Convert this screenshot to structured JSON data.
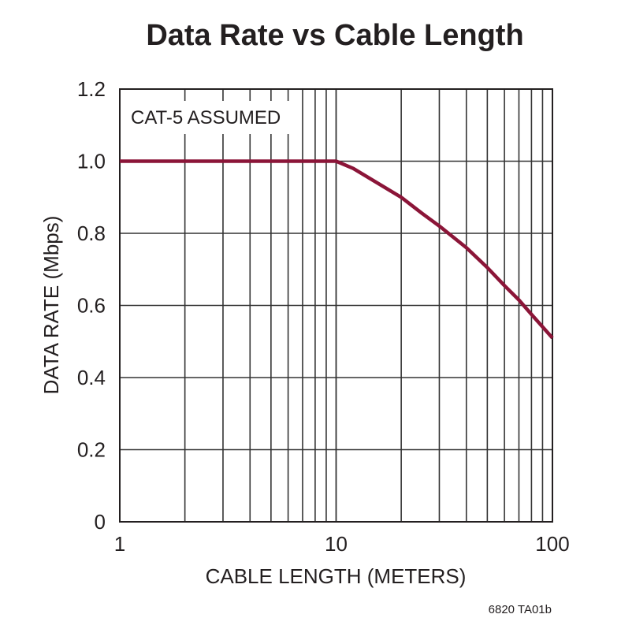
{
  "chart_data": {
    "type": "line",
    "title": "Data Rate vs Cable Length",
    "xlabel": "CABLE LENGTH (METERS)",
    "ylabel": "DATA RATE (Mbps)",
    "x_scale": "log",
    "xlim": [
      1,
      100
    ],
    "ylim": [
      0,
      1.2
    ],
    "x_tick_labels": [
      "1",
      "10",
      "100"
    ],
    "y_tick_labels": [
      "0",
      "0.2",
      "0.4",
      "0.6",
      "0.8",
      "1.0",
      "1.2"
    ],
    "grid": true,
    "annotation": "CAT-5 ASSUMED",
    "series": [
      {
        "color": "#8b1538",
        "x": [
          1,
          10,
          12,
          15,
          20,
          25,
          30,
          40,
          50,
          60,
          70,
          80,
          100
        ],
        "y": [
          1.0,
          1.0,
          0.98,
          0.945,
          0.9,
          0.855,
          0.82,
          0.76,
          0.705,
          0.655,
          0.615,
          0.575,
          0.51
        ]
      }
    ]
  },
  "figure_code": "6820 TA01b",
  "colors": {
    "line": "#8b1538",
    "grid": "#333333",
    "text": "#231f20"
  }
}
